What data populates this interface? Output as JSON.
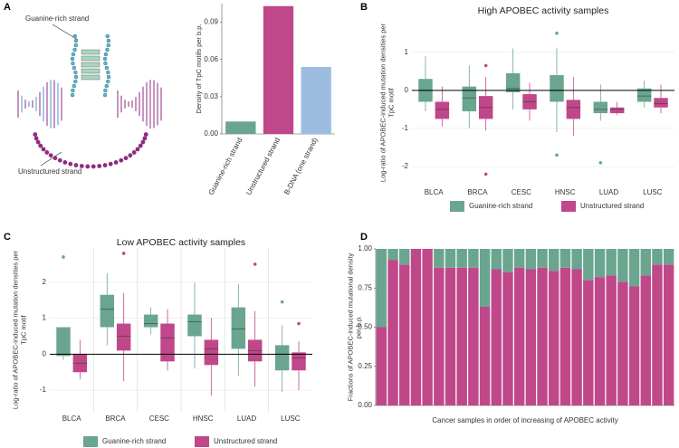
{
  "panel_labels": [
    "A",
    "B",
    "C",
    "D"
  ],
  "diagram": {
    "labels": [
      "Guanine-rich strand",
      "Unstructured strand"
    ]
  },
  "chart_data": [
    {
      "type": "bar",
      "ylabel": "Density of TpC motifs per b.p.",
      "categories": [
        "Guanine-rich strand",
        "Unstructured strand",
        "B-DNA (one strand)"
      ],
      "values": [
        0.01,
        0.103,
        0.054
      ],
      "colors": [
        "#6aa58f",
        "#c0478a",
        "#9dbde0"
      ],
      "ylim": [
        0,
        0.105
      ],
      "yticks": [
        {
          "value": 0,
          "label": "0.00"
        },
        {
          "value": 0.03,
          "label": "0.03"
        },
        {
          "value": 0.06,
          "label": "0.06"
        },
        {
          "value": 0.09,
          "label": "0.09"
        }
      ]
    },
    {
      "type": "box",
      "title": "High APOBEC activity samples",
      "ylabel": "Log-ratio of APOBEC-induced mutation densities per TpC motif",
      "categories": [
        "BLCA",
        "BRCA",
        "CESC",
        "HNSC",
        "LUAD",
        "LUSC"
      ],
      "ylim": [
        -2.5,
        1.85
      ],
      "yticks": [
        -2,
        -1,
        0,
        1
      ],
      "grid": true,
      "reference_line": 0,
      "series": [
        {
          "name": "Guanine-rich strand",
          "color": "#6aa58f",
          "boxes": [
            {
              "low": -0.55,
              "q1": -0.3,
              "median": 0.0,
              "q3": 0.3,
              "high": 0.9,
              "outliers": []
            },
            {
              "low": -1.0,
              "q1": -0.55,
              "median": -0.2,
              "q3": 0.1,
              "high": 0.65,
              "outliers": []
            },
            {
              "low": -0.5,
              "q1": -0.05,
              "median": 0.05,
              "q3": 0.45,
              "high": 1.1,
              "outliers": []
            },
            {
              "low": -1.1,
              "q1": -0.3,
              "median": 0.0,
              "q3": 0.4,
              "high": 1.1,
              "outliers": [
                1.5,
                -1.7
              ]
            },
            {
              "low": -0.8,
              "q1": -0.6,
              "median": -0.5,
              "q3": -0.3,
              "high": 0.15,
              "outliers": [
                -1.9
              ]
            },
            {
              "low": -0.45,
              "q1": -0.3,
              "median": -0.15,
              "q3": 0.05,
              "high": 0.25,
              "outliers": []
            }
          ]
        },
        {
          "name": "Unstructured strand",
          "color": "#c0478a",
          "boxes": [
            {
              "low": -0.95,
              "q1": -0.75,
              "median": -0.5,
              "q3": -0.3,
              "high": 0.1,
              "outliers": []
            },
            {
              "low": -1.05,
              "q1": -0.75,
              "median": -0.45,
              "q3": -0.15,
              "high": 0.35,
              "outliers": [
                0.65,
                -2.2
              ]
            },
            {
              "low": -0.8,
              "q1": -0.5,
              "median": -0.3,
              "q3": -0.1,
              "high": 0.2,
              "outliers": []
            },
            {
              "low": -1.2,
              "q1": -0.75,
              "median": -0.45,
              "q3": -0.25,
              "high": 0.35,
              "outliers": []
            },
            {
              "low": -0.65,
              "q1": -0.6,
              "median": -0.5,
              "q3": -0.45,
              "high": -0.3,
              "outliers": []
            },
            {
              "low": -0.6,
              "q1": -0.45,
              "median": -0.35,
              "q3": -0.2,
              "high": 0.15,
              "outliers": []
            }
          ]
        }
      ]
    },
    {
      "type": "box",
      "title": "Low APOBEC activity samples",
      "ylabel": "Log-ratio of APOBEC-induced mutation densities per TpC motif",
      "categories": [
        "BLCA",
        "BRCA",
        "CESC",
        "HNSC",
        "LUAD",
        "LUSC"
      ],
      "ylim": [
        -1.6,
        2.95
      ],
      "yticks": [
        -1,
        0,
        1,
        2
      ],
      "grid": true,
      "separators": true,
      "reference_line": 0,
      "series": [
        {
          "name": "Guanine-rich strand",
          "color": "#6aa58f",
          "boxes": [
            {
              "low": -0.15,
              "q1": -0.05,
              "median": 0.0,
              "q3": 0.75,
              "high": 0.75,
              "outliers": [
                2.7
              ]
            },
            {
              "low": 0.25,
              "q1": 0.75,
              "median": 1.25,
              "q3": 1.65,
              "high": 2.25,
              "outliers": []
            },
            {
              "low": 0.55,
              "q1": 0.75,
              "median": 0.85,
              "q3": 1.1,
              "high": 1.3,
              "outliers": []
            },
            {
              "low": -0.4,
              "q1": 0.5,
              "median": 0.9,
              "q3": 1.1,
              "high": 2.0,
              "outliers": []
            },
            {
              "low": -0.6,
              "q1": 0.15,
              "median": 0.7,
              "q3": 1.3,
              "high": 1.95,
              "outliers": []
            },
            {
              "low": -1.05,
              "q1": -0.45,
              "median": 0.0,
              "q3": 0.25,
              "high": 0.8,
              "outliers": [
                1.45
              ]
            }
          ]
        },
        {
          "name": "Unstructured strand",
          "color": "#c0478a",
          "boxes": [
            {
              "low": -0.7,
              "q1": -0.5,
              "median": -0.25,
              "q3": 0.0,
              "high": 0.4,
              "outliers": []
            },
            {
              "low": -0.75,
              "q1": 0.1,
              "median": 0.5,
              "q3": 0.85,
              "high": 1.7,
              "outliers": [
                2.8
              ]
            },
            {
              "low": -0.45,
              "q1": -0.2,
              "median": 0.45,
              "q3": 0.85,
              "high": 1.25,
              "outliers": []
            },
            {
              "low": -1.15,
              "q1": -0.3,
              "median": 0.15,
              "q3": 0.4,
              "high": 1.0,
              "outliers": []
            },
            {
              "low": -0.9,
              "q1": -0.2,
              "median": 0.1,
              "q3": 0.4,
              "high": 1.2,
              "outliers": [
                2.5
              ]
            },
            {
              "low": -1.0,
              "q1": -0.45,
              "median": -0.1,
              "q3": 0.05,
              "high": 0.35,
              "outliers": [
                0.85
              ]
            }
          ]
        }
      ]
    },
    {
      "type": "stacked_bar",
      "ylabel": "Fractions of APOBEC-induced mutational density per b.p.",
      "xlabel": "Cancer samples in order of increasing of APOBEC activity",
      "categories": [
        null,
        null,
        null,
        null,
        null,
        null,
        null,
        null,
        null,
        null,
        null,
        null,
        null,
        null,
        null,
        null,
        null,
        null,
        null,
        null,
        null,
        null,
        null,
        null,
        null,
        null
      ],
      "ylim": [
        0,
        1
      ],
      "yticks": [
        {
          "value": 0,
          "label": "0.00"
        },
        {
          "value": 0.25,
          "label": "0.25"
        },
        {
          "value": 0.5,
          "label": "0.50"
        },
        {
          "value": 0.75,
          "label": "0.75"
        },
        {
          "value": 1,
          "label": "1.00"
        }
      ],
      "series": [
        {
          "color": "#c0478a",
          "values": [
            0.5,
            0.93,
            0.9,
            1.0,
            1.0,
            0.88,
            0.88,
            0.88,
            0.88,
            0.63,
            0.87,
            0.85,
            0.88,
            0.87,
            0.88,
            0.86,
            0.88,
            0.87,
            0.8,
            0.82,
            0.83,
            0.79,
            0.76,
            0.83,
            0.9,
            0.9
          ]
        },
        {
          "color": "#6aa58f",
          "values": [
            0.5,
            0.07,
            0.1,
            0.0,
            0.0,
            0.12,
            0.12,
            0.12,
            0.12,
            0.37,
            0.13,
            0.15,
            0.12,
            0.13,
            0.12,
            0.14,
            0.12,
            0.13,
            0.2,
            0.18,
            0.17,
            0.21,
            0.24,
            0.17,
            0.1,
            0.1
          ]
        }
      ]
    }
  ]
}
